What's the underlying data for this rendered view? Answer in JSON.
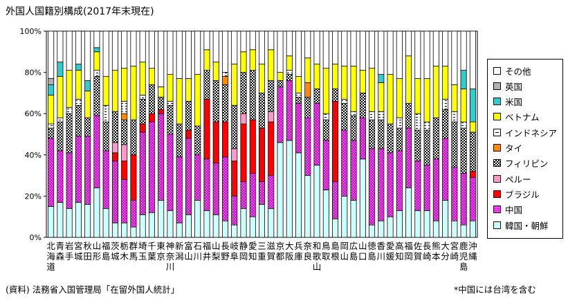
{
  "chart_data": {
    "type": "bar",
    "stacked": true,
    "title": "外国人国籍別構成(2017年末現在)",
    "ylim": [
      0,
      100
    ],
    "y_ticks": [
      "0%",
      "20%",
      "40%",
      "60%",
      "80%",
      "100%"
    ],
    "categories": [
      "北海道",
      "青森",
      "岩手",
      "宮城",
      "秋田",
      "山形",
      "福島",
      "茨城",
      "栃木",
      "群馬",
      "埼玉",
      "千葉",
      "東京",
      "神奈川",
      "新潟",
      "富山",
      "石川",
      "福井",
      "山梨",
      "長野",
      "岐阜",
      "静岡",
      "愛知",
      "三重",
      "滋賀",
      "京都",
      "大阪",
      "兵庫",
      "奈良",
      "和歌山",
      "鳥取",
      "島根",
      "岡山",
      "広島",
      "山口",
      "徳島",
      "香川",
      "愛媛",
      "高知",
      "福岡",
      "佐賀",
      "長崎",
      "熊本",
      "大分",
      "宮崎",
      "鹿児島",
      "沖縄"
    ],
    "series": [
      {
        "name": "韓国・朝鮮",
        "values": [
          15,
          17,
          14,
          17,
          16,
          24,
          14,
          7,
          7,
          5,
          11,
          12,
          18,
          13,
          7,
          11,
          18,
          13,
          11,
          8,
          6,
          14,
          10,
          16,
          14,
          46,
          47,
          41,
          30,
          35,
          23,
          9,
          20,
          18,
          38,
          6,
          8,
          10,
          13,
          24,
          13,
          13,
          8,
          18,
          8,
          6,
          8
        ]
      },
      {
        "name": "中国",
        "values": [
          33,
          25,
          27,
          32,
          33,
          35,
          28,
          30,
          21,
          13,
          40,
          44,
          42,
          37,
          32,
          37,
          22,
          25,
          25,
          31,
          14,
          13,
          21,
          11,
          16,
          27,
          29,
          24,
          28,
          30,
          24,
          18,
          32,
          29,
          20,
          37,
          35,
          31,
          29,
          29,
          24,
          22,
          30,
          30,
          26,
          25,
          21
        ]
      },
      {
        "name": "ブラジル",
        "values": [
          0,
          0,
          0,
          0,
          0,
          0,
          0,
          4,
          9,
          22,
          4,
          4,
          2,
          0,
          0,
          4,
          0,
          29,
          20,
          17,
          17,
          28,
          26,
          26,
          26,
          0,
          0,
          0,
          0,
          0,
          0,
          39,
          0,
          0,
          0,
          0,
          0,
          0,
          0,
          0,
          0,
          0,
          0,
          0,
          0,
          0,
          3
        ]
      },
      {
        "name": "ペルー",
        "values": [
          0,
          0,
          0,
          0,
          0,
          0,
          0,
          5,
          8,
          0,
          0,
          0,
          0,
          0,
          0,
          0,
          0,
          0,
          0,
          0,
          6,
          5,
          0,
          0,
          5,
          0,
          0,
          0,
          0,
          0,
          0,
          0,
          0,
          0,
          0,
          0,
          0,
          0,
          0,
          0,
          0,
          0,
          0,
          0,
          0,
          0,
          0
        ]
      },
      {
        "name": "フィリピン",
        "values": [
          5,
          14,
          19,
          15,
          9,
          19,
          14,
          15,
          12,
          17,
          12,
          14,
          6,
          14,
          16,
          14,
          14,
          14,
          20,
          18,
          21,
          20,
          24,
          17,
          15,
          3,
          3,
          3,
          10,
          7,
          10,
          6,
          13,
          12,
          12,
          14,
          14,
          14,
          11,
          12,
          15,
          17,
          20,
          14,
          22,
          22,
          19
        ]
      },
      {
        "name": "タイ",
        "values": [
          0,
          0,
          0,
          0,
          0,
          0,
          0,
          0,
          3,
          0,
          0,
          0,
          0,
          0,
          0,
          0,
          0,
          0,
          0,
          4,
          0,
          0,
          0,
          0,
          0,
          0,
          0,
          0,
          7,
          0,
          0,
          0,
          0,
          0,
          0,
          0,
          0,
          0,
          0,
          0,
          0,
          0,
          0,
          0,
          0,
          0,
          0
        ]
      },
      {
        "name": "インドネシア",
        "values": [
          2,
          2,
          3,
          3,
          0,
          3,
          8,
          0,
          6,
          0,
          2,
          0,
          0,
          2,
          0,
          0,
          0,
          0,
          0,
          2,
          0,
          0,
          0,
          0,
          0,
          0,
          2,
          2,
          0,
          0,
          3,
          0,
          2,
          2,
          0,
          4,
          4,
          0,
          5,
          0,
          8,
          4,
          0,
          5,
          5,
          3,
          0
        ]
      },
      {
        "name": "ベトナム",
        "values": [
          14,
          20,
          18,
          14,
          13,
          9,
          14,
          20,
          16,
          26,
          16,
          8,
          5,
          13,
          22,
          11,
          25,
          10,
          9,
          0,
          20,
          10,
          10,
          14,
          15,
          4,
          7,
          8,
          12,
          12,
          22,
          12,
          16,
          22,
          11,
          21,
          14,
          24,
          19,
          23,
          17,
          21,
          25,
          16,
          13,
          16,
          5
        ]
      },
      {
        "name": "米国",
        "values": [
          5,
          7,
          0,
          3,
          5,
          2,
          0,
          0,
          0,
          0,
          0,
          0,
          0,
          0,
          0,
          0,
          0,
          0,
          0,
          0,
          0,
          0,
          0,
          0,
          0,
          0,
          0,
          0,
          0,
          0,
          0,
          0,
          0,
          0,
          0,
          0,
          4,
          0,
          0,
          0,
          0,
          0,
          0,
          0,
          0,
          9,
          16
        ]
      },
      {
        "name": "英国",
        "values": [
          3,
          0,
          0,
          0,
          0,
          0,
          0,
          0,
          0,
          0,
          0,
          0,
          0,
          0,
          0,
          0,
          0,
          0,
          0,
          0,
          0,
          0,
          0,
          0,
          0,
          0,
          0,
          0,
          0,
          0,
          0,
          0,
          0,
          0,
          0,
          0,
          0,
          0,
          0,
          0,
          0,
          0,
          0,
          0,
          0,
          0,
          0
        ]
      },
      {
        "name": "その他",
        "values": [
          23,
          15,
          19,
          16,
          24,
          8,
          22,
          19,
          18,
          17,
          15,
          18,
          27,
          21,
          23,
          23,
          21,
          9,
          15,
          20,
          16,
          10,
          9,
          16,
          9,
          20,
          12,
          22,
          13,
          16,
          18,
          16,
          17,
          17,
          19,
          18,
          21,
          21,
          23,
          12,
          23,
          23,
          17,
          17,
          26,
          19,
          28
        ]
      }
    ],
    "legend_position": "right",
    "grid": false
  },
  "source_note": "(資料) 法務省入国管理局「在留外国人統計」",
  "footnote": "*中国には台湾を含む"
}
